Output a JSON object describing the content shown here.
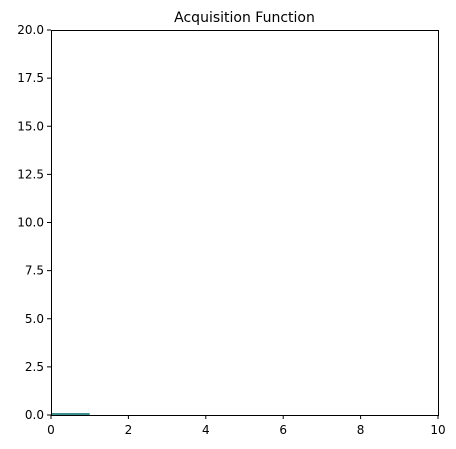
{
  "chart_data": {
    "type": "bar",
    "title": "Acquisition Function",
    "xlabel": "",
    "ylabel": "",
    "xlim": [
      0,
      10
    ],
    "ylim": [
      0,
      20
    ],
    "xticks": [
      0,
      2,
      4,
      6,
      8,
      10
    ],
    "yticks": [
      0.0,
      2.5,
      5.0,
      7.5,
      10.0,
      12.5,
      15.0,
      17.5,
      20.0
    ],
    "xtick_labels": [
      "0",
      "2",
      "4",
      "6",
      "8",
      "10"
    ],
    "ytick_labels": [
      "0.0",
      "2.5",
      "5.0",
      "7.5",
      "10.0",
      "12.5",
      "15.0",
      "17.5",
      "20.0"
    ],
    "grid": false,
    "bars": [
      {
        "x0": 0,
        "x1": 1,
        "value": 0.1
      }
    ],
    "colors": {
      "bar": "#3a8f8f",
      "axes": "#000000",
      "background": "#ffffff"
    }
  }
}
